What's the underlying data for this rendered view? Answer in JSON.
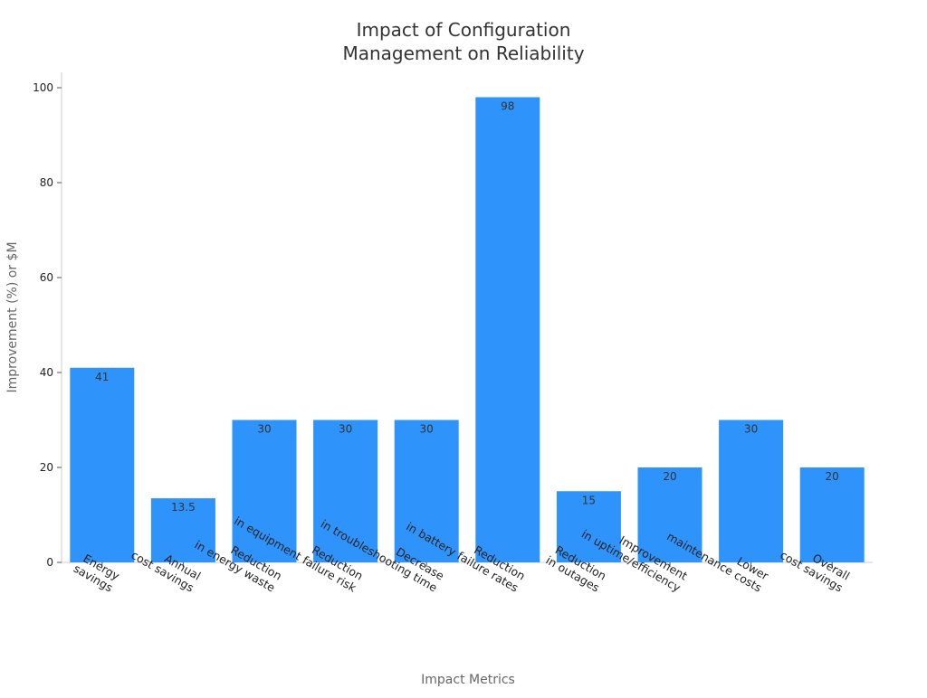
{
  "chart_data": {
    "type": "bar",
    "title": [
      "Impact of Configuration",
      "Management on Reliability"
    ],
    "xlabel": "Impact Metrics",
    "ylabel": "Improvement (%) or $M",
    "ylim": [
      0,
      100
    ],
    "yticks": [
      0,
      20,
      40,
      60,
      80,
      100
    ],
    "grid": false,
    "bar_color": "#2E93FA",
    "categories": [
      [
        "Energy",
        "savings"
      ],
      [
        "Annual",
        "cost savings"
      ],
      [
        "Reduction",
        "in energy waste"
      ],
      [
        "Reduction",
        "in equipment failure risk"
      ],
      [
        "Decrease",
        "in troubleshooting time"
      ],
      [
        "Reduction",
        "in battery failure rates"
      ],
      [
        "Reduction",
        "in outages"
      ],
      [
        "Improvement",
        "in uptime/efficiency"
      ],
      [
        "Lower",
        "maintenance costs"
      ],
      [
        "Overall",
        "cost savings"
      ]
    ],
    "values": [
      41,
      13.5,
      30,
      30,
      30,
      98,
      15,
      20,
      30,
      20
    ],
    "value_labels": [
      "41",
      "13.5",
      "30",
      "30",
      "30",
      "98",
      "15",
      "20",
      "30",
      "20"
    ]
  }
}
